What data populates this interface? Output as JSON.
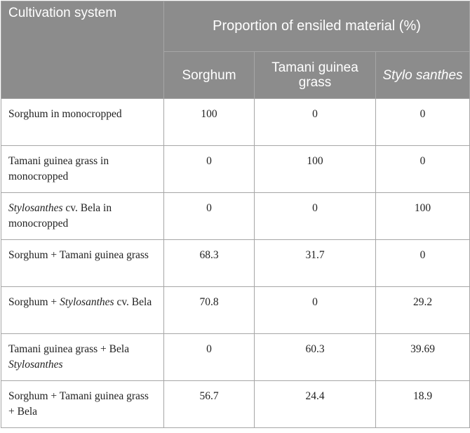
{
  "table": {
    "header": {
      "system": "Cultivation system",
      "group": "Proportion of ensiled material (%)",
      "sorghum": "Sorghum",
      "tamani": "Tamani guinea grass",
      "stylo": "Stylo santhes"
    },
    "rows": [
      {
        "system_parts": [
          {
            "t": "Sorghum in monocropped",
            "i": false
          }
        ],
        "sorghum": "100",
        "tamani": "0",
        "stylo": "0"
      },
      {
        "system_parts": [
          {
            "t": "Tamani guinea grass in monocropped",
            "i": false
          }
        ],
        "sorghum": "0",
        "tamani": "100",
        "stylo": "0"
      },
      {
        "system_parts": [
          {
            "t": "Stylosanthes",
            "i": true
          },
          {
            "t": " cv. Bela in monocropped",
            "i": false
          }
        ],
        "sorghum": "0",
        "tamani": "0",
        "stylo": "100"
      },
      {
        "system_parts": [
          {
            "t": "Sorghum + Tamani guinea grass",
            "i": false
          }
        ],
        "sorghum": "68.3",
        "tamani": "31.7",
        "stylo": "0"
      },
      {
        "system_parts": [
          {
            "t": "Sorghum + ",
            "i": false
          },
          {
            "t": "Stylosanthes",
            "i": true
          },
          {
            "t": " cv. Bela",
            "i": false
          }
        ],
        "sorghum": "70.8",
        "tamani": "0",
        "stylo": "29.2"
      },
      {
        "system_parts": [
          {
            "t": "Tamani guinea grass + Bela ",
            "i": false
          },
          {
            "t": "Stylosanthes",
            "i": true
          }
        ],
        "sorghum": "0",
        "tamani": "60.3",
        "stylo": "39.69"
      },
      {
        "system_parts": [
          {
            "t": "Sorghum + Tamani guinea grass + Bela",
            "i": false
          }
        ],
        "sorghum": "56.7",
        "tamani": "24.4",
        "stylo": "18.9"
      }
    ]
  }
}
